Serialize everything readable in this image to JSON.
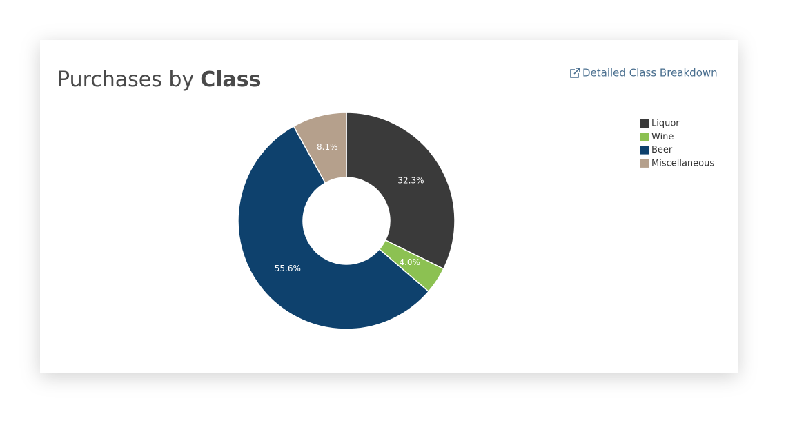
{
  "chart_data": {
    "type": "donut",
    "title": "Purchases by",
    "title_bold": "Class",
    "link": "Detailed Class Breakdown",
    "categories": [
      "Liquor",
      "Wine",
      "Beer",
      "Miscellaneous"
    ],
    "values": [
      32.3,
      4.0,
      55.6,
      8.1
    ],
    "value_labels": [
      "32.3%",
      "4.0%",
      "55.6%",
      "8.1%"
    ],
    "colors": [
      "#3a3a3a",
      "#8cc152",
      "#0e416d",
      "#b5a08c"
    ],
    "legend": "right"
  }
}
